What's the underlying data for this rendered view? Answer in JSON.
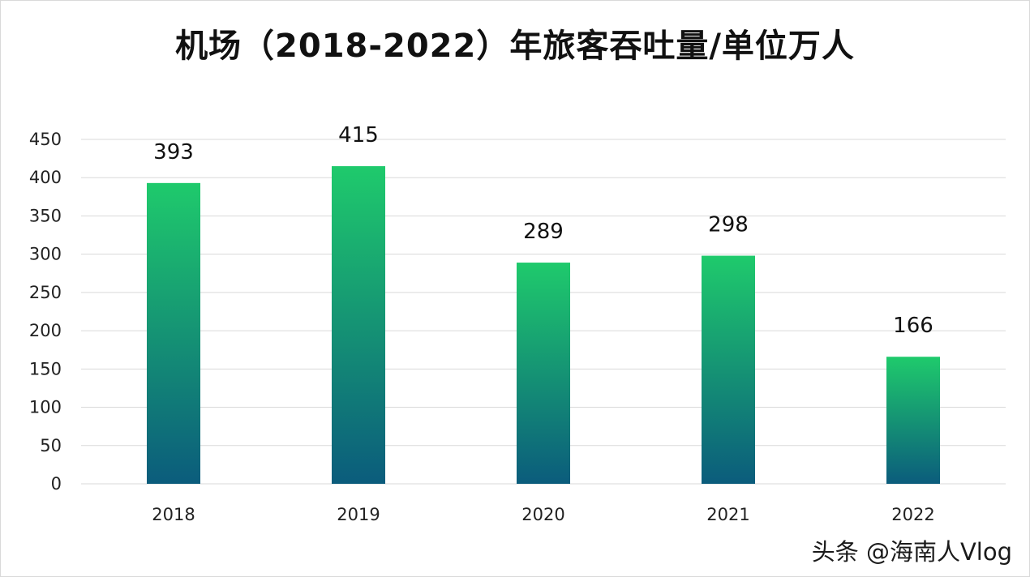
{
  "chart_data": {
    "type": "bar",
    "title": "机场（2018-2022）年旅客吞吐量/单位万人",
    "categories": [
      "2018",
      "2019",
      "2020",
      "2021",
      "2022"
    ],
    "values": [
      393,
      415,
      289,
      298,
      166
    ],
    "xlabel": "",
    "ylabel": "",
    "ylim": [
      0,
      450
    ],
    "yticks": [
      0,
      50,
      100,
      150,
      200,
      250,
      300,
      350,
      400,
      450
    ],
    "grid": true,
    "legend": "none",
    "data_labels": true,
    "bar_gradient": {
      "top": "#1fca6c",
      "bottom": "#0b5c7c"
    }
  },
  "watermark": "头条 @海南人Vlog",
  "colors": {
    "gridline": "#d9d9d9",
    "axis": "#d9d9d9"
  }
}
